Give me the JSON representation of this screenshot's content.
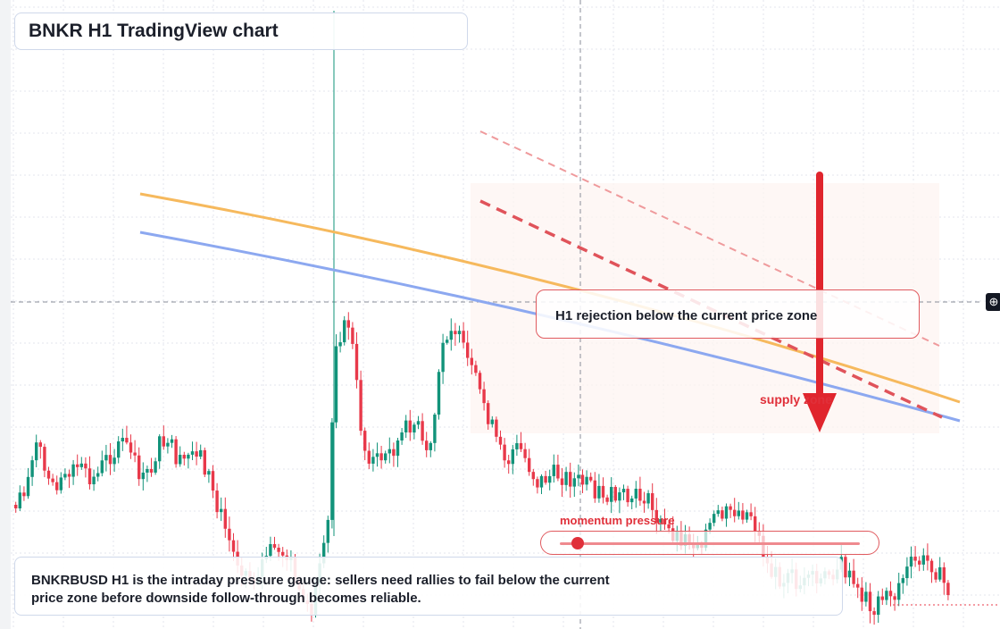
{
  "chart_title": "BNKR H1 TradingView chart",
  "callout_text": "H1 rejection below the current price zone",
  "supply_label": "supply zone",
  "momentum_label": "momentum pressure",
  "momentum_value": 0.06,
  "bottom_note": "BNKRBUSD H1 is the intraday pressure gauge: sellers need rallies to fail below the current price zone before downside follow-through becomes reliable.",
  "crosshair_icon": "crosshair-plus-icon",
  "colors": {
    "bull": "#12937a",
    "bear": "#e8394a",
    "ma_orange": "#f6b95d",
    "ma_blue": "#8ca8f0",
    "resistance_red": "#e0535a",
    "arrow_red": "#e0252d",
    "grid": "#e3e6ec"
  }
}
